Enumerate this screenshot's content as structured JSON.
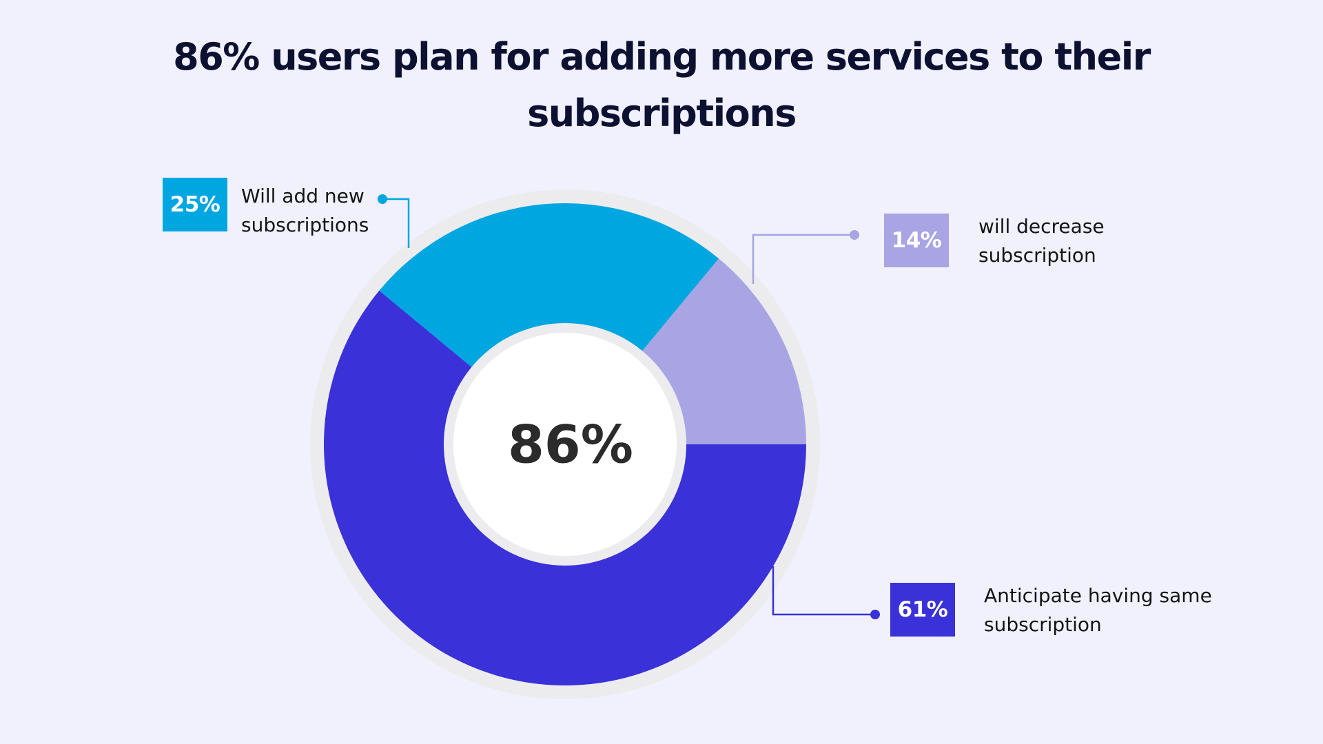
{
  "chart_data": {
    "type": "pie",
    "title": "86% users plan for adding more services to their subscriptions",
    "center_label": "86%",
    "slices": [
      {
        "label": "Will add new subscriptions",
        "value": 25,
        "value_label": "25%",
        "color": "#00a6e0"
      },
      {
        "label": "will decrease subscription",
        "value": 14,
        "value_label": "14%",
        "color": "#a9a4e4"
      },
      {
        "label": "Anticipate having same subscription",
        "value": 61,
        "value_label": "61%",
        "color": "#3a31d8"
      }
    ]
  },
  "colors": {
    "background": "#f0f1fc",
    "ring": "#ececef",
    "hole": "#ffffff",
    "title": "#0d1131"
  }
}
